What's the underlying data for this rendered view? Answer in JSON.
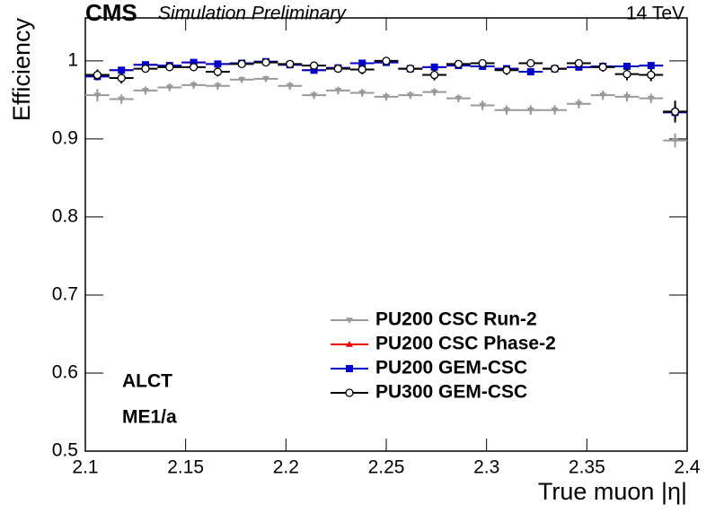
{
  "chart_data": {
    "type": "errorbar",
    "experiment": "CMS",
    "subtitle": "Simulation Preliminary",
    "energy": "14 TeV",
    "annotations": [
      "ALCT",
      "ME1/a"
    ],
    "x_label": "True muon |η|",
    "y_label": "Efficiency",
    "x": [
      2.106,
      2.118,
      2.13,
      2.142,
      2.154,
      2.166,
      2.178,
      2.19,
      2.202,
      2.214,
      2.226,
      2.238,
      2.25,
      2.262,
      2.274,
      2.286,
      2.298,
      2.31,
      2.322,
      2.334,
      2.346,
      2.358,
      2.37,
      2.382,
      2.394
    ],
    "series": [
      {
        "name": "PU200 CSC Run-2",
        "color": "#999999",
        "marker": "triangle-down",
        "values": [
          0.956,
          0.951,
          0.962,
          0.966,
          0.969,
          0.968,
          0.976,
          0.977,
          0.968,
          0.956,
          0.962,
          0.959,
          0.954,
          0.956,
          0.96,
          0.952,
          0.943,
          0.937,
          0.937,
          0.937,
          0.945,
          0.956,
          0.954,
          0.952,
          0.898
        ],
        "errors": [
          0.008,
          0.006,
          0.005,
          0.005,
          0.005,
          0.005,
          0.004,
          0.004,
          0.005,
          0.005,
          0.005,
          0.005,
          0.005,
          0.005,
          0.005,
          0.005,
          0.006,
          0.006,
          0.006,
          0.006,
          0.006,
          0.006,
          0.006,
          0.006,
          0.009
        ]
      },
      {
        "name": "PU200 CSC Phase-2",
        "color": "#ee0000",
        "marker": "triangle-up",
        "values": [
          0.98,
          0.988,
          0.995,
          0.994,
          0.998,
          0.996,
          0.997,
          0.999,
          0.995,
          0.988,
          0.991,
          0.997,
          0.998,
          0.99,
          0.992,
          0.994,
          0.993,
          0.99,
          0.986,
          0.99,
          0.992,
          0.993,
          0.993,
          0.994,
          0.934
        ],
        "errors": [
          0.004,
          0.003,
          0.002,
          0.002,
          0.002,
          0.002,
          0.002,
          0.001,
          0.002,
          0.002,
          0.002,
          0.002,
          0.002,
          0.002,
          0.002,
          0.002,
          0.002,
          0.002,
          0.003,
          0.002,
          0.002,
          0.002,
          0.002,
          0.002,
          0.009
        ]
      },
      {
        "name": "PU200 GEM-CSC",
        "color": "#0000cc",
        "marker": "square",
        "values": [
          0.98,
          0.988,
          0.995,
          0.994,
          0.998,
          0.996,
          0.997,
          0.999,
          0.995,
          0.988,
          0.991,
          0.997,
          0.998,
          0.99,
          0.992,
          0.994,
          0.993,
          0.99,
          0.986,
          0.99,
          0.992,
          0.993,
          0.993,
          0.994,
          0.934
        ],
        "errors": [
          0.004,
          0.003,
          0.002,
          0.002,
          0.002,
          0.002,
          0.002,
          0.001,
          0.002,
          0.002,
          0.002,
          0.002,
          0.002,
          0.002,
          0.002,
          0.002,
          0.002,
          0.002,
          0.003,
          0.002,
          0.002,
          0.002,
          0.002,
          0.002,
          0.009
        ]
      },
      {
        "name": "PU300 GEM-CSC",
        "color": "#000000",
        "marker": "circle-open",
        "values": [
          0.982,
          0.978,
          0.99,
          0.992,
          0.992,
          0.986,
          0.996,
          0.998,
          0.996,
          0.994,
          0.99,
          0.989,
          1.0,
          0.99,
          0.982,
          0.996,
          0.997,
          0.988,
          0.997,
          0.99,
          0.997,
          0.992,
          0.983,
          0.982,
          0.935
        ],
        "errors": [
          0.007,
          0.007,
          0.005,
          0.005,
          0.005,
          0.006,
          0.004,
          0.003,
          0.004,
          0.004,
          0.005,
          0.006,
          0.003,
          0.005,
          0.007,
          0.004,
          0.004,
          0.006,
          0.004,
          0.005,
          0.004,
          0.006,
          0.008,
          0.008,
          0.014
        ]
      }
    ],
    "xlim": [
      2.1,
      2.4
    ],
    "xticks": [
      2.1,
      2.15,
      2.2,
      2.25,
      2.3,
      2.35,
      2.4
    ],
    "ylim": [
      0.5,
      1.055
    ],
    "yticks": [
      0.5,
      0.6,
      0.7,
      0.8,
      0.9,
      1
    ]
  }
}
